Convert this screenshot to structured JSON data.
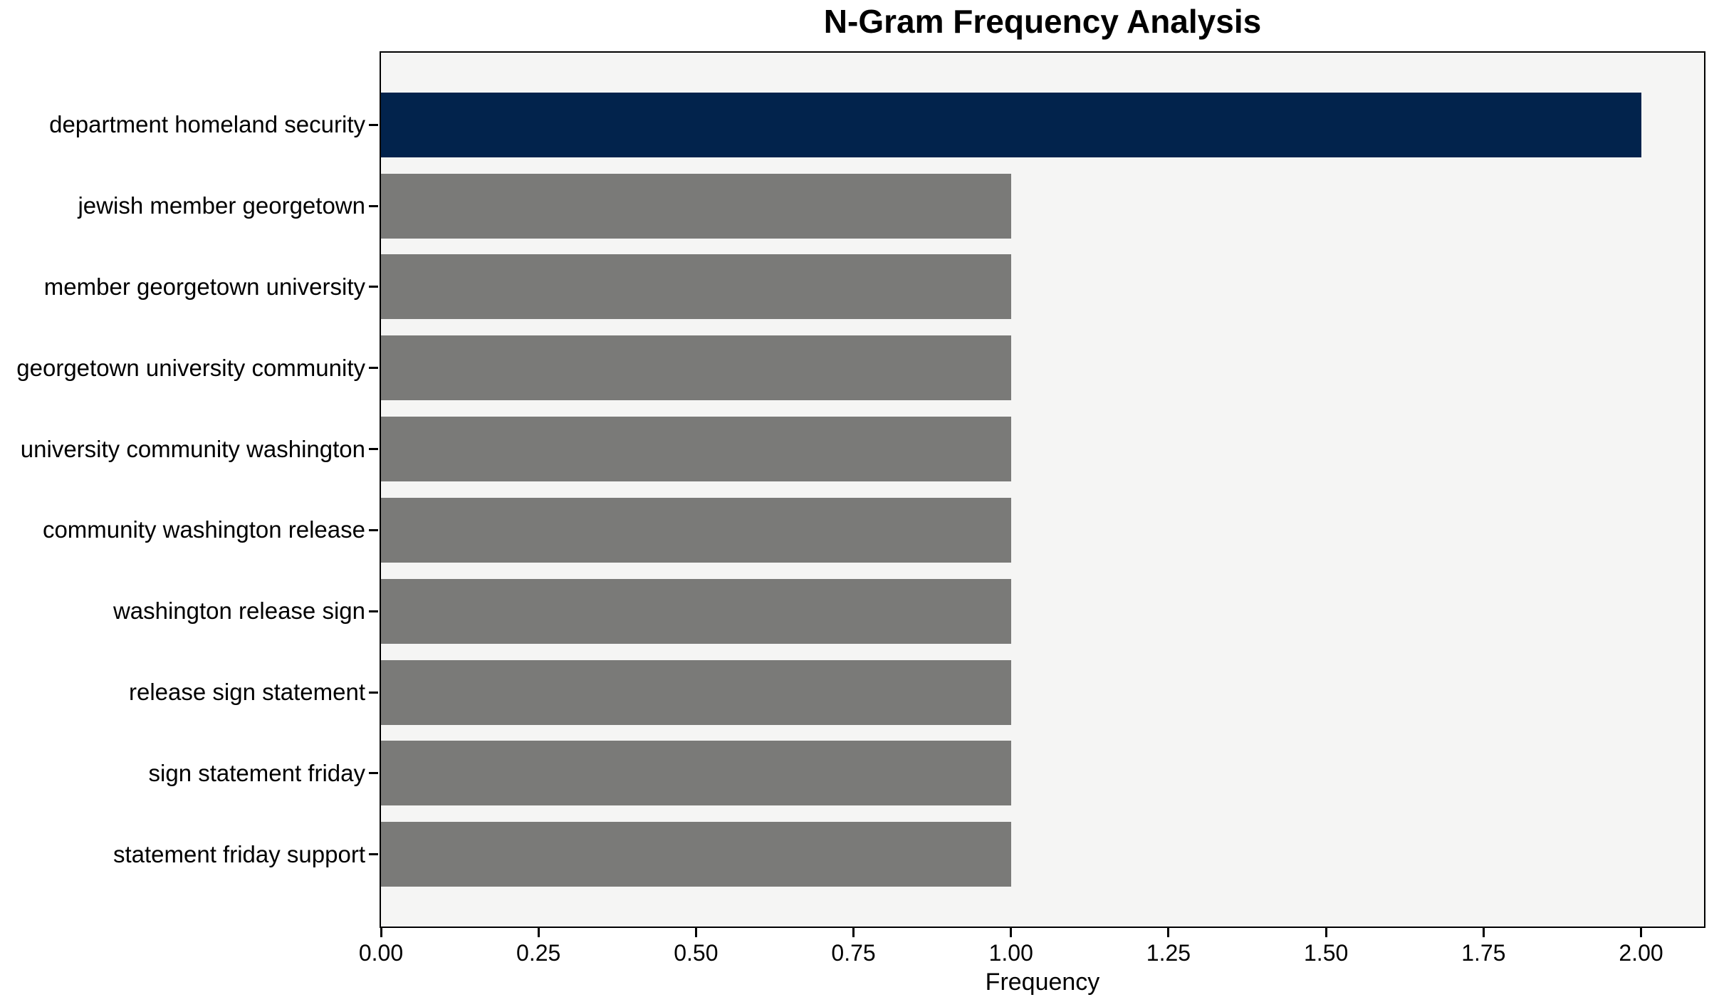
{
  "chart_data": {
    "type": "bar",
    "orientation": "horizontal",
    "title": "N-Gram Frequency Analysis",
    "xlabel": "Frequency",
    "ylabel": "",
    "categories": [
      "department homeland security",
      "jewish member georgetown",
      "member georgetown university",
      "georgetown university community",
      "university community washington",
      "community washington release",
      "washington release sign",
      "release sign statement",
      "sign statement friday",
      "statement friday support"
    ],
    "values": [
      2,
      1,
      1,
      1,
      1,
      1,
      1,
      1,
      1,
      1
    ],
    "bar_colors": [
      "#02234c",
      "#7a7a78",
      "#7a7a78",
      "#7a7a78",
      "#7a7a78",
      "#7a7a78",
      "#7a7a78",
      "#7a7a78",
      "#7a7a78",
      "#7a7a78"
    ],
    "xlim": [
      0,
      2.1
    ],
    "xtick_values": [
      0,
      0.25,
      0.5,
      0.75,
      1.0,
      1.25,
      1.5,
      1.75,
      2.0
    ],
    "xtick_labels": [
      "0.00",
      "0.25",
      "0.50",
      "0.75",
      "1.00",
      "1.25",
      "1.50",
      "1.75",
      "2.00"
    ],
    "grid": false,
    "legend": null,
    "colors": {
      "highlight_bar": "#02234c",
      "default_bar": "#7a7a78",
      "plot_background": "#f5f5f4",
      "figure_background": "#ffffff",
      "spine": "#000000",
      "text": "#000000"
    }
  }
}
